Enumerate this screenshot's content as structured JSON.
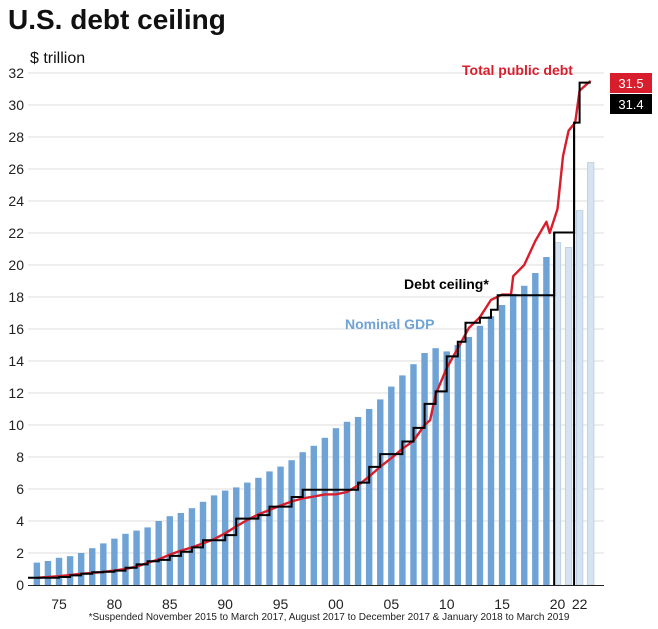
{
  "page": {
    "title": "U.S. debt ceiling",
    "unit_label": "$ trillion",
    "footnote": "*Suspended November 2015 to March 2017, August 2017 to December 2017 & January 2018 to March 2019"
  },
  "colors": {
    "gdp": "#6fa3d6",
    "gdp_projected": "#d6e3f1",
    "debt": "#d81e2c",
    "ceiling": "#000000",
    "grid": "#dddddd"
  },
  "chart_data": {
    "type": "bar",
    "title": "U.S. debt ceiling",
    "ylabel": "$ trillion",
    "ylim": [
      0,
      32
    ],
    "yticks": [
      0,
      2,
      4,
      6,
      8,
      10,
      12,
      14,
      16,
      18,
      20,
      22,
      24,
      26,
      28,
      30,
      32
    ],
    "xlim": [
      1972.2,
      2024.2
    ],
    "xticks": [
      {
        "year": 1975,
        "label": "75"
      },
      {
        "year": 1980,
        "label": "80"
      },
      {
        "year": 1985,
        "label": "85"
      },
      {
        "year": 1990,
        "label": "90"
      },
      {
        "year": 1995,
        "label": "95"
      },
      {
        "year": 2000,
        "label": "00"
      },
      {
        "year": 2005,
        "label": "05"
      },
      {
        "year": 2010,
        "label": "10"
      },
      {
        "year": 2015,
        "label": "15"
      },
      {
        "year": 2020,
        "label": "20"
      },
      {
        "year": 2022,
        "label": "22"
      }
    ],
    "series": [
      {
        "name": "Nominal GDP",
        "label": "Nominal GDP",
        "type": "bar",
        "x": [
          1973,
          1974,
          1975,
          1976,
          1977,
          1978,
          1979,
          1980,
          1981,
          1982,
          1983,
          1984,
          1985,
          1986,
          1987,
          1988,
          1989,
          1990,
          1991,
          1992,
          1993,
          1994,
          1995,
          1996,
          1997,
          1998,
          1999,
          2000,
          2001,
          2002,
          2003,
          2004,
          2005,
          2006,
          2007,
          2008,
          2009,
          2010,
          2011,
          2012,
          2013,
          2014,
          2015,
          2016,
          2017,
          2018,
          2019,
          2020,
          2021,
          2022,
          2023
        ],
        "values": [
          1.4,
          1.5,
          1.7,
          1.8,
          2.0,
          2.3,
          2.6,
          2.9,
          3.2,
          3.4,
          3.6,
          4.0,
          4.3,
          4.5,
          4.8,
          5.2,
          5.6,
          5.9,
          6.1,
          6.4,
          6.7,
          7.1,
          7.4,
          7.8,
          8.3,
          8.7,
          9.2,
          9.8,
          10.2,
          10.5,
          11.0,
          11.6,
          12.4,
          13.1,
          13.8,
          14.5,
          14.8,
          14.6,
          15.0,
          15.5,
          16.2,
          16.8,
          17.5,
          18.2,
          18.7,
          19.5,
          20.5,
          21.4,
          21.1,
          23.4,
          26.4
        ],
        "projected_from": 2020
      },
      {
        "name": "Total public debt",
        "label": "Total public debt",
        "type": "line",
        "points": [
          [
            1973,
            0.45
          ],
          [
            1975,
            0.55
          ],
          [
            1977,
            0.7
          ],
          [
            1979,
            0.82
          ],
          [
            1980,
            0.9
          ],
          [
            1981,
            1.0
          ],
          [
            1982,
            1.15
          ],
          [
            1983,
            1.38
          ],
          [
            1984,
            1.6
          ],
          [
            1985,
            1.9
          ],
          [
            1986,
            2.15
          ],
          [
            1987,
            2.35
          ],
          [
            1988,
            2.6
          ],
          [
            1989,
            2.87
          ],
          [
            1990,
            3.23
          ],
          [
            1991,
            3.66
          ],
          [
            1992,
            4.06
          ],
          [
            1993,
            4.41
          ],
          [
            1994,
            4.69
          ],
          [
            1995,
            4.97
          ],
          [
            1996,
            5.22
          ],
          [
            1997,
            5.41
          ],
          [
            1998,
            5.53
          ],
          [
            1999,
            5.66
          ],
          [
            2000,
            5.67
          ],
          [
            2001,
            5.81
          ],
          [
            2002,
            6.23
          ],
          [
            2003,
            6.78
          ],
          [
            2004,
            7.38
          ],
          [
            2005,
            7.93
          ],
          [
            2006,
            8.51
          ],
          [
            2007,
            9.01
          ],
          [
            2008,
            10.0
          ],
          [
            2008.5,
            10.3
          ],
          [
            2009,
            11.9
          ],
          [
            2010,
            13.56
          ],
          [
            2011,
            14.79
          ],
          [
            2012,
            16.07
          ],
          [
            2013,
            16.74
          ],
          [
            2014,
            17.82
          ],
          [
            2015,
            18.15
          ],
          [
            2015.8,
            18.15
          ],
          [
            2016,
            19.3
          ],
          [
            2017,
            20.0
          ],
          [
            2018,
            21.5
          ],
          [
            2019,
            22.7
          ],
          [
            2019.3,
            22.0
          ],
          [
            2020,
            23.5
          ],
          [
            2020.5,
            26.8
          ],
          [
            2021,
            28.4
          ],
          [
            2021.6,
            28.9
          ],
          [
            2022,
            30.9
          ],
          [
            2022.8,
            31.4
          ],
          [
            2023,
            31.5
          ]
        ],
        "end_value": 31.5
      },
      {
        "name": "Debt ceiling*",
        "label": "Debt ceiling*",
        "type": "step",
        "points": [
          [
            1972.2,
            0.45
          ],
          [
            1975,
            0.5
          ],
          [
            1976,
            0.6
          ],
          [
            1977,
            0.7
          ],
          [
            1978,
            0.8
          ],
          [
            1979,
            0.83
          ],
          [
            1980,
            0.9
          ],
          [
            1981,
            1.08
          ],
          [
            1982,
            1.29
          ],
          [
            1983,
            1.49
          ],
          [
            1984,
            1.57
          ],
          [
            1985,
            1.82
          ],
          [
            1986,
            2.08
          ],
          [
            1987,
            2.35
          ],
          [
            1988,
            2.8
          ],
          [
            1990,
            3.12
          ],
          [
            1991,
            4.15
          ],
          [
            1993,
            4.37
          ],
          [
            1994,
            4.9
          ],
          [
            1996,
            5.5
          ],
          [
            1997,
            5.95
          ],
          [
            2002,
            6.4
          ],
          [
            2003,
            7.38
          ],
          [
            2004,
            8.18
          ],
          [
            2006,
            8.97
          ],
          [
            2007,
            9.82
          ],
          [
            2008,
            11.32
          ],
          [
            2009,
            12.1
          ],
          [
            2010,
            14.29
          ],
          [
            2011,
            15.2
          ],
          [
            2011.7,
            16.39
          ],
          [
            2013,
            16.7
          ],
          [
            2014,
            17.2
          ],
          [
            2014.6,
            18.11
          ],
          [
            2015.8,
            18.11
          ],
          [
            2019.7,
            22.03
          ],
          [
            2021.5,
            28.9
          ],
          [
            2022,
            31.4
          ],
          [
            2023,
            31.4
          ]
        ],
        "end_value": 31.4
      }
    ],
    "annotations": [
      {
        "text": "Total public debt",
        "series": "Total public debt"
      },
      {
        "text": "Debt ceiling*",
        "series": "Debt ceiling*"
      },
      {
        "text": "Nominal GDP",
        "series": "Nominal GDP"
      }
    ],
    "end_labels": [
      {
        "text": "31.5",
        "series": "Total public debt"
      },
      {
        "text": "31.4",
        "series": "Debt ceiling*"
      }
    ]
  }
}
